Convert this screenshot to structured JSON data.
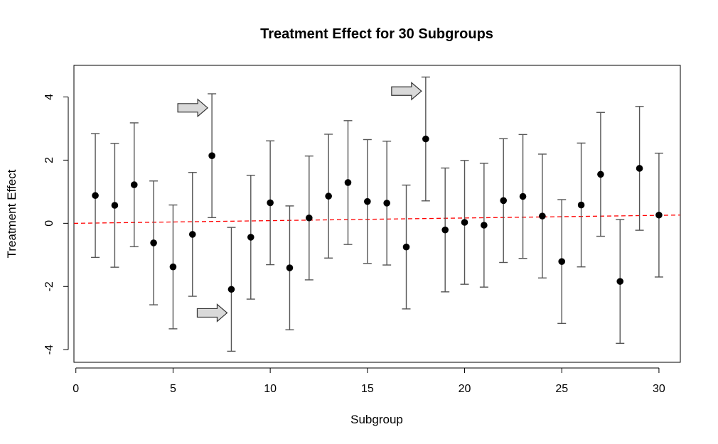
{
  "chart_data": {
    "type": "scatter",
    "title": "Treatment Effect for 30 Subgroups",
    "xlabel": "Subgroup",
    "ylabel": "Treatment Effect",
    "xlim": [
      -0.1,
      31.1
    ],
    "ylim": [
      -4.4,
      5.0
    ],
    "x_ticks": [
      0,
      5,
      10,
      15,
      20,
      25,
      30
    ],
    "y_ticks": [
      -4,
      -2,
      0,
      2,
      4
    ],
    "x": [
      1,
      2,
      3,
      4,
      5,
      6,
      7,
      8,
      9,
      10,
      11,
      12,
      13,
      14,
      15,
      16,
      17,
      18,
      19,
      20,
      21,
      22,
      23,
      24,
      25,
      26,
      27,
      28,
      29,
      30
    ],
    "estimate": [
      0.88,
      0.57,
      1.22,
      -0.62,
      -1.38,
      -0.35,
      2.14,
      -2.09,
      -0.44,
      0.65,
      -1.41,
      0.17,
      0.86,
      1.29,
      0.69,
      0.64,
      -0.75,
      2.67,
      -0.21,
      0.03,
      -0.06,
      0.72,
      0.85,
      0.23,
      -1.21,
      0.58,
      1.55,
      -1.84,
      1.74,
      0.26
    ],
    "lower": [
      -1.08,
      -1.39,
      -0.74,
      -2.58,
      -3.34,
      -2.31,
      0.18,
      -4.05,
      -2.4,
      -1.31,
      -3.37,
      -1.79,
      -1.1,
      -0.67,
      -1.27,
      -1.32,
      -2.71,
      0.71,
      -2.17,
      -1.93,
      -2.02,
      -1.24,
      -1.11,
      -1.73,
      -3.17,
      -1.38,
      -0.41,
      -3.8,
      -0.22,
      -1.7
    ],
    "upper": [
      2.84,
      2.53,
      3.18,
      1.34,
      0.58,
      1.61,
      4.1,
      -0.13,
      1.52,
      2.61,
      0.55,
      2.13,
      2.82,
      3.25,
      2.65,
      2.6,
      1.21,
      4.63,
      1.75,
      1.99,
      1.9,
      2.68,
      2.81,
      2.19,
      0.75,
      2.54,
      3.51,
      0.12,
      3.7,
      2.22
    ],
    "reference_line": {
      "style": "dashed",
      "color": "#ff0000",
      "intercept": 0.0,
      "slope": 0.0084
    },
    "highlighted_subgroups": [
      7,
      8,
      18
    ],
    "grid": false,
    "legend": "none"
  },
  "colors": {
    "point": "#000000",
    "errorbar": "#555555",
    "arrow_fill": "#d9d9d9",
    "arrow_stroke": "#333333"
  }
}
